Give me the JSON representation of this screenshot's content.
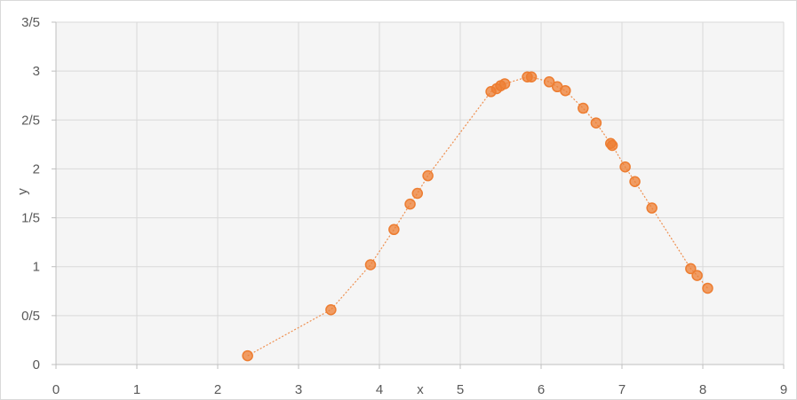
{
  "chart_data": {
    "type": "scatter",
    "title": "",
    "xlabel": "x",
    "ylabel": "y",
    "xlim": [
      0,
      9
    ],
    "ylim": [
      0,
      3.5
    ],
    "grid": true,
    "legend": "none",
    "x_ticks": [
      {
        "value": 0,
        "label": "0"
      },
      {
        "value": 1,
        "label": "1"
      },
      {
        "value": 2,
        "label": "2"
      },
      {
        "value": 3,
        "label": "3"
      },
      {
        "value": 4,
        "label": "4"
      },
      {
        "value": 5,
        "label": "5"
      },
      {
        "value": 6,
        "label": "6"
      },
      {
        "value": 7,
        "label": "7"
      },
      {
        "value": 8,
        "label": "8"
      },
      {
        "value": 9,
        "label": "9"
      }
    ],
    "y_ticks": [
      {
        "value": 0,
        "label": "0"
      },
      {
        "value": 0.5,
        "label": "0/5"
      },
      {
        "value": 1,
        "label": "1"
      },
      {
        "value": 1.5,
        "label": "1/5"
      },
      {
        "value": 2,
        "label": "2"
      },
      {
        "value": 2.5,
        "label": "2/5"
      },
      {
        "value": 3,
        "label": "3"
      },
      {
        "value": 3.5,
        "label": "3/5"
      }
    ],
    "series": [
      {
        "color": "#ed7d31",
        "points": [
          {
            "x": 2.37,
            "y": 0.09
          },
          {
            "x": 3.4,
            "y": 0.56
          },
          {
            "x": 3.89,
            "y": 1.02
          },
          {
            "x": 4.18,
            "y": 1.38
          },
          {
            "x": 4.38,
            "y": 1.64
          },
          {
            "x": 4.47,
            "y": 1.75
          },
          {
            "x": 4.6,
            "y": 1.93
          },
          {
            "x": 5.38,
            "y": 2.79
          },
          {
            "x": 5.45,
            "y": 2.82
          },
          {
            "x": 5.5,
            "y": 2.85
          },
          {
            "x": 5.55,
            "y": 2.87
          },
          {
            "x": 5.83,
            "y": 2.94
          },
          {
            "x": 5.88,
            "y": 2.94
          },
          {
            "x": 6.1,
            "y": 2.89
          },
          {
            "x": 6.2,
            "y": 2.84
          },
          {
            "x": 6.3,
            "y": 2.8
          },
          {
            "x": 6.52,
            "y": 2.62
          },
          {
            "x": 6.68,
            "y": 2.47
          },
          {
            "x": 6.86,
            "y": 2.26
          },
          {
            "x": 6.88,
            "y": 2.24
          },
          {
            "x": 7.04,
            "y": 2.02
          },
          {
            "x": 7.16,
            "y": 1.87
          },
          {
            "x": 7.37,
            "y": 1.6
          },
          {
            "x": 7.85,
            "y": 0.98
          },
          {
            "x": 7.93,
            "y": 0.91
          },
          {
            "x": 8.06,
            "y": 0.78
          }
        ]
      }
    ]
  }
}
